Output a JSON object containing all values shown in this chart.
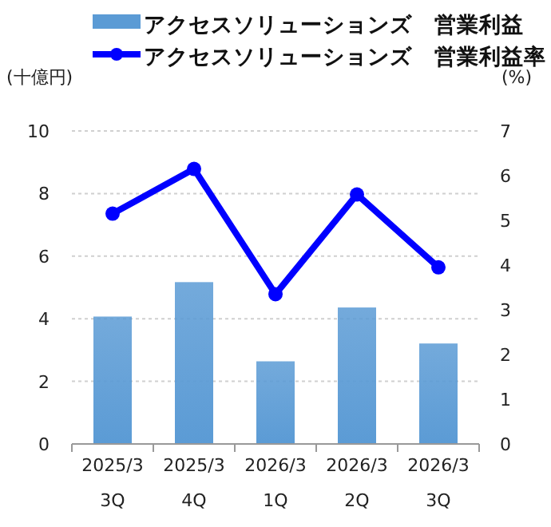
{
  "chart_data": {
    "type": "bar",
    "categories": [
      "2025/3\n3Q",
      "2025/3\n4Q",
      "2026/3\n1Q",
      "2026/3\n2Q",
      "2026/3\n3Q"
    ],
    "series": [
      {
        "name": "アクセスソリューションズ　営業利益",
        "color": "#5b9bd5",
        "values": [
          4.07,
          5.17,
          2.64,
          4.36,
          3.21
        ]
      },
      {
        "name": "アクセスソリューションズ　営業利益率",
        "type": "line",
        "axis": "y2",
        "color": "#0000ff",
        "marker": "circle",
        "values": [
          5.15,
          6.15,
          3.35,
          5.58,
          3.95
        ]
      }
    ],
    "ylabel": "(十億円)",
    "y2label": "(%)",
    "ylim": [
      0,
      10
    ],
    "yticks": [
      0,
      2,
      4,
      6,
      8,
      10
    ],
    "y2lim": [
      0,
      7
    ],
    "y2ticks": [
      0,
      1,
      2,
      3,
      4,
      5,
      6,
      7
    ],
    "grid": "y",
    "legend": "top"
  }
}
